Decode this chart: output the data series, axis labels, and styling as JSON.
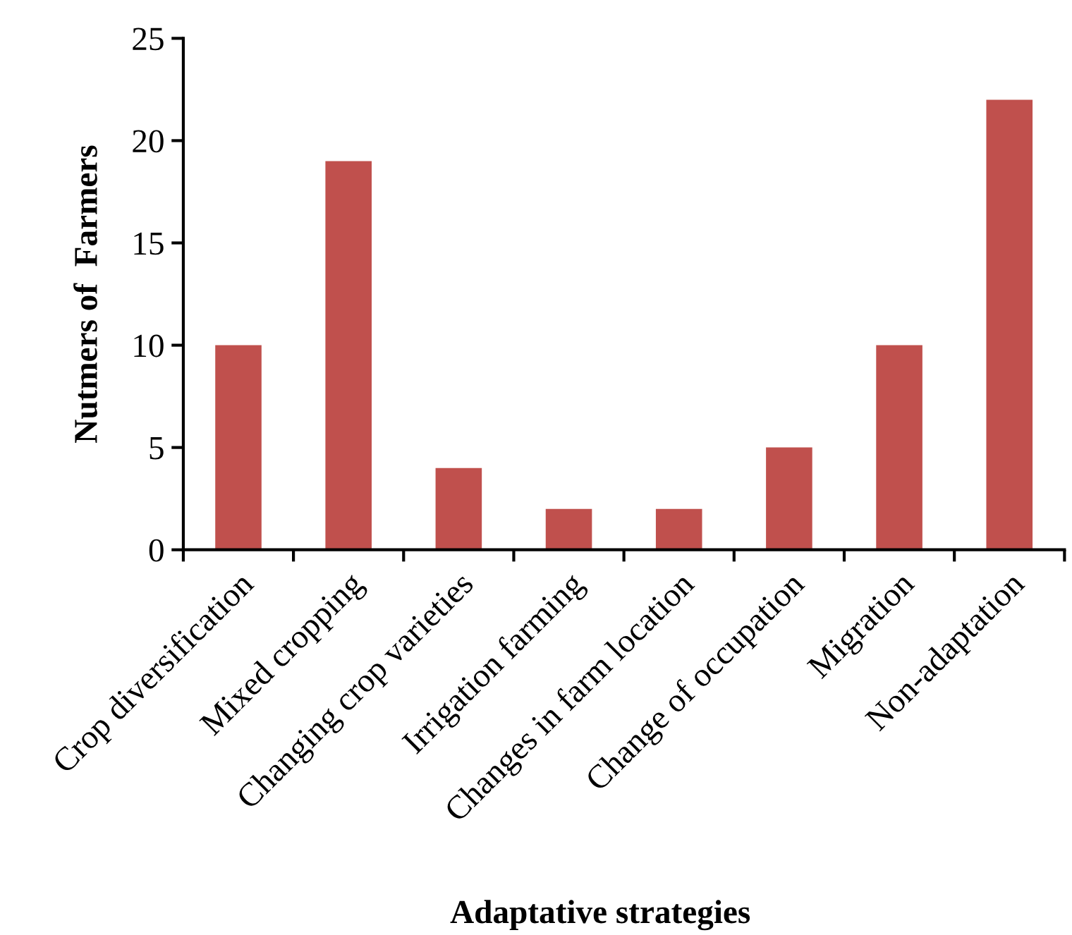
{
  "chart_data": {
    "type": "bar",
    "categories": [
      "Crop diversification",
      "Mixed cropping",
      "Changing crop varieties",
      "Irrigation farming",
      "Changes in farm location",
      "Change of occupation",
      "Migration",
      "Non-adaptation"
    ],
    "values": [
      10,
      19,
      4,
      2,
      2,
      5,
      10,
      22
    ],
    "color": "#c0504d",
    "xlabel": "Adaptative strategies",
    "ylabel": "Nutmers of  Farmers",
    "ylim": [
      0,
      25
    ],
    "yticks": [
      0,
      5,
      10,
      15,
      20,
      25
    ],
    "grid": false,
    "legend": false
  }
}
